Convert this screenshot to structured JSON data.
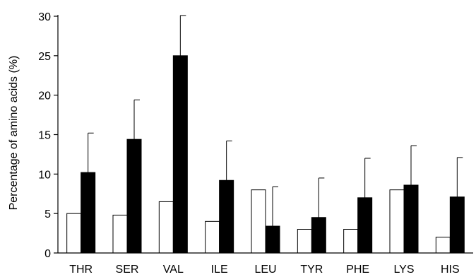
{
  "chart_data": {
    "type": "bar",
    "title": "",
    "xlabel": "",
    "ylabel": "Percentage of amino acids (%)",
    "ylim": [
      0,
      30
    ],
    "yticks": [
      0,
      5,
      10,
      15,
      20,
      25,
      30
    ],
    "grid": false,
    "categories": [
      "THR",
      "SER",
      "VAL",
      "ILE",
      "LEU",
      "TYR",
      "PHE",
      "LYS",
      "HIS"
    ],
    "series": [
      {
        "fill": "#ffffff",
        "values": [
          5.0,
          4.8,
          6.5,
          4.0,
          8.0,
          3.0,
          3.0,
          8.0,
          2.0
        ],
        "errors": [
          0,
          0,
          0,
          0,
          0,
          0,
          0,
          0,
          0
        ]
      },
      {
        "fill": "#000000",
        "values": [
          10.2,
          14.4,
          25.0,
          9.2,
          3.4,
          4.5,
          7.0,
          8.6,
          7.1
        ],
        "errors": [
          5.0,
          5.0,
          5.1,
          5.0,
          5.0,
          5.0,
          5.0,
          5.0,
          5.0
        ]
      }
    ]
  }
}
